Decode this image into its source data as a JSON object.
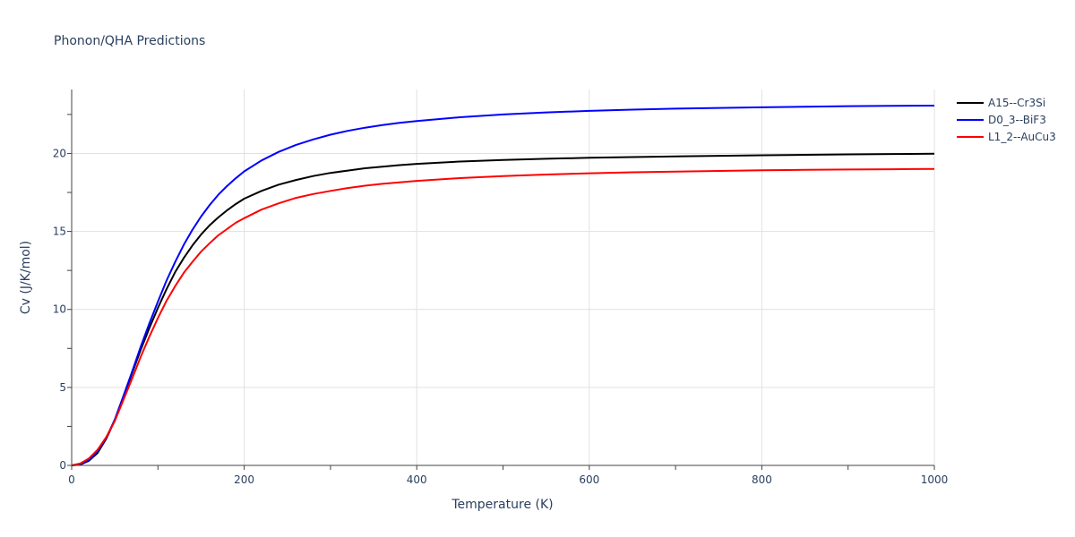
{
  "chart_data": {
    "type": "line",
    "title": "Phonon/QHA Predictions",
    "xlabel": "Temperature (K)",
    "ylabel": "Cv (J/K/mol)",
    "xlim": [
      0,
      1000
    ],
    "ylim": [
      0,
      24.1
    ],
    "x_ticks": [
      0,
      200,
      400,
      600,
      800,
      1000
    ],
    "y_ticks": [
      0,
      5,
      10,
      15,
      20
    ],
    "grid": true,
    "legend_position": "top-right",
    "series": [
      {
        "name": "A15--Cr3Si",
        "color": "#000000",
        "x": [
          0,
          10,
          20,
          30,
          40,
          50,
          60,
          70,
          80,
          90,
          100,
          110,
          120,
          130,
          140,
          150,
          160,
          170,
          180,
          190,
          200,
          220,
          240,
          260,
          280,
          300,
          320,
          340,
          360,
          380,
          400,
          450,
          500,
          550,
          600,
          650,
          700,
          750,
          800,
          850,
          900,
          950,
          1000
        ],
        "y": [
          0,
          0.05,
          0.3,
          0.8,
          1.7,
          2.9,
          4.4,
          5.9,
          7.4,
          8.8,
          10.1,
          11.3,
          12.4,
          13.3,
          14.1,
          14.8,
          15.4,
          15.9,
          16.35,
          16.75,
          17.1,
          17.6,
          18.0,
          18.3,
          18.55,
          18.75,
          18.9,
          19.05,
          19.15,
          19.25,
          19.33,
          19.48,
          19.58,
          19.66,
          19.72,
          19.77,
          19.81,
          19.85,
          19.88,
          19.91,
          19.94,
          19.96,
          19.98
        ]
      },
      {
        "name": "D0_3--BiF3",
        "color": "#0000ff",
        "x": [
          0,
          10,
          20,
          30,
          40,
          50,
          60,
          70,
          80,
          90,
          100,
          110,
          120,
          130,
          140,
          150,
          160,
          170,
          180,
          190,
          200,
          220,
          240,
          260,
          280,
          300,
          320,
          340,
          360,
          380,
          400,
          450,
          500,
          550,
          600,
          650,
          700,
          750,
          800,
          850,
          900,
          950,
          1000
        ],
        "y": [
          0,
          0.08,
          0.35,
          0.9,
          1.75,
          2.95,
          4.45,
          6.0,
          7.6,
          9.1,
          10.5,
          11.85,
          13.05,
          14.15,
          15.1,
          15.95,
          16.7,
          17.35,
          17.9,
          18.4,
          18.85,
          19.55,
          20.1,
          20.55,
          20.9,
          21.2,
          21.45,
          21.65,
          21.82,
          21.96,
          22.08,
          22.32,
          22.5,
          22.63,
          22.73,
          22.81,
          22.87,
          22.92,
          22.96,
          23.0,
          23.03,
          23.05,
          23.07
        ]
      },
      {
        "name": "L1_2--AuCu3",
        "color": "#ff0000",
        "x": [
          0,
          10,
          20,
          30,
          40,
          50,
          60,
          70,
          80,
          90,
          100,
          110,
          120,
          130,
          140,
          150,
          160,
          170,
          180,
          190,
          200,
          220,
          240,
          260,
          280,
          300,
          320,
          340,
          360,
          380,
          400,
          450,
          500,
          550,
          600,
          650,
          700,
          750,
          800,
          850,
          900,
          950,
          1000
        ],
        "y": [
          0,
          0.12,
          0.45,
          1.0,
          1.8,
          2.85,
          4.2,
          5.55,
          6.95,
          8.25,
          9.45,
          10.55,
          11.5,
          12.35,
          13.05,
          13.7,
          14.25,
          14.75,
          15.15,
          15.55,
          15.85,
          16.4,
          16.8,
          17.15,
          17.4,
          17.6,
          17.78,
          17.93,
          18.05,
          18.15,
          18.24,
          18.42,
          18.55,
          18.65,
          18.73,
          18.79,
          18.84,
          18.88,
          18.92,
          18.95,
          18.97,
          18.99,
          19.01
        ]
      }
    ]
  }
}
